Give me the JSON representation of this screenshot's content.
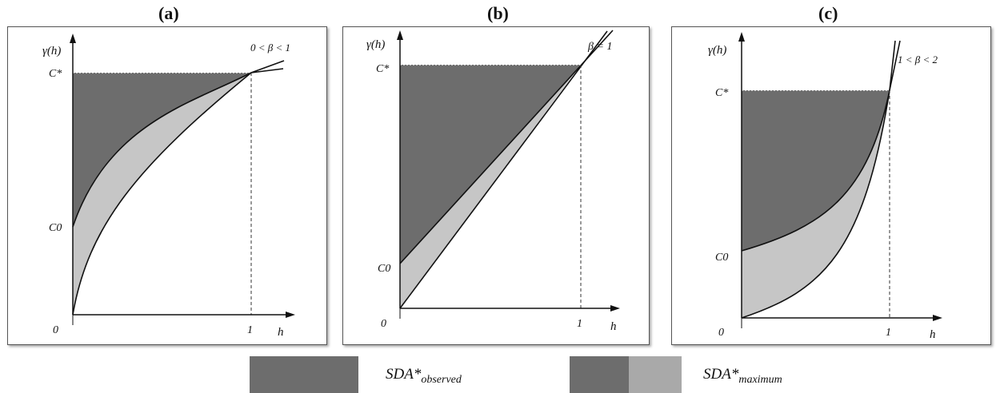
{
  "colors": {
    "dark": "#6d6d6d",
    "light": "#c6c6c6",
    "axis": "#111111"
  },
  "axis_labels": {
    "y": "γ(h)",
    "x": "h",
    "c_star": "C*",
    "c0": "C0",
    "origin": "0",
    "one": "1"
  },
  "panels": [
    {
      "title": "(a)",
      "condition": "0 < β < 1"
    },
    {
      "title": "(b)",
      "condition": "β = 1"
    },
    {
      "title": "(c)",
      "condition": "1 < β < 2"
    }
  ],
  "legend": {
    "observed": {
      "base": "SDA*",
      "subscript": "observed"
    },
    "maximum": {
      "base": "SDA*",
      "subscript": "maximum"
    }
  }
}
